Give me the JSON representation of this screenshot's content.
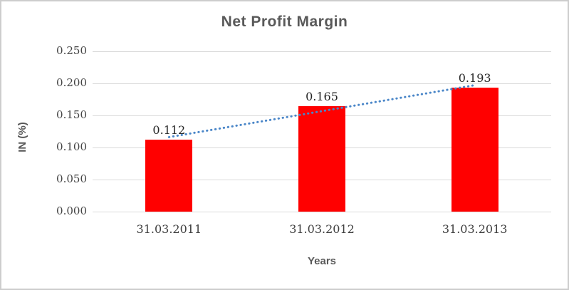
{
  "chart_data": {
    "type": "bar",
    "title": "Net Profit Margin",
    "xlabel": "Years",
    "ylabel": "IN (%)",
    "categories": [
      "31.03.2011",
      "31.03.2012",
      "31.03.2013"
    ],
    "values": [
      0.112,
      0.165,
      0.193
    ],
    "data_labels": [
      "0.112",
      "0.165",
      "0.193"
    ],
    "ylim": [
      0.0,
      0.25
    ],
    "y_ticks": [
      "0.250",
      "0.200",
      "0.150",
      "0.100",
      "0.050",
      "0.000"
    ],
    "grid": true,
    "legend": "none",
    "trendline": {
      "type": "linear-dotted",
      "fit_values": [
        0.1162,
        0.1567,
        0.1972
      ],
      "color": "#4a86c8"
    },
    "colors": {
      "bar": "#ff0000",
      "title_text": "#595959",
      "axis_text": "#3f3f3f",
      "gridline": "#d9d9d9",
      "frame_border": "#cdcdcd"
    }
  }
}
